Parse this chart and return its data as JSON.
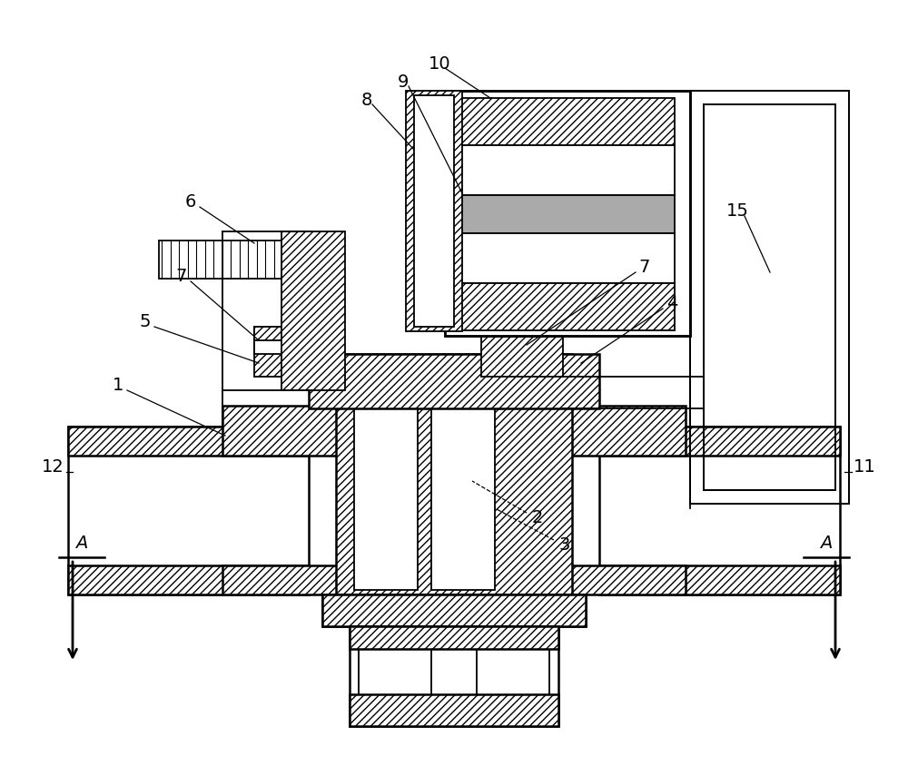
{
  "bg_color": "#ffffff",
  "gray_fill": "#aaaaaa",
  "lw": 1.3,
  "lw_thick": 1.8,
  "hatch": "////",
  "fs": 14
}
